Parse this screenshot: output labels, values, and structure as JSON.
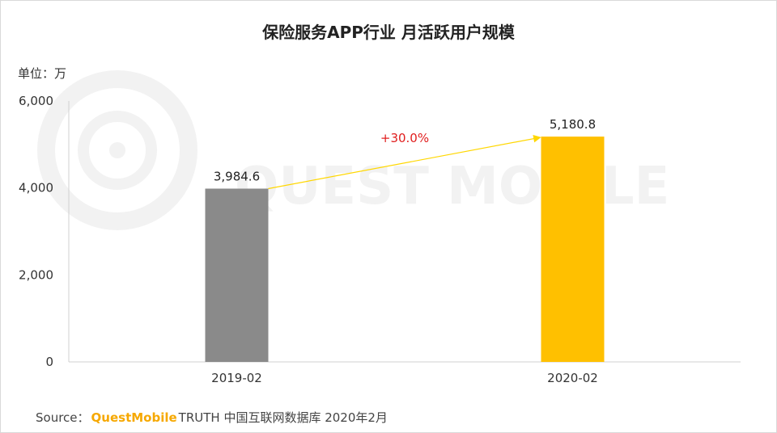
{
  "chart_data": {
    "type": "bar",
    "title": "保险服务APP行业 月活跃用户规模",
    "unit_label": "单位：万",
    "categories": [
      "2019-02",
      "2020-02"
    ],
    "values": [
      3984.6,
      5180.8
    ],
    "value_labels": [
      "3,984.6",
      "5,180.8"
    ],
    "bar_colors": [
      "#8a8a8a",
      "#ffc000"
    ],
    "ylim": [
      0,
      6000
    ],
    "yticks": [
      0,
      2000,
      4000,
      6000
    ],
    "ytick_labels": [
      "0",
      "2,000",
      "4,000",
      "6,000"
    ],
    "grid": false,
    "growth_annotation": "+30.0%",
    "growth_color": "#e01e1e",
    "arrow_color": "#ffd700"
  },
  "watermark": "QUEST MOBILE",
  "footer": {
    "source_label": "Source：",
    "brand": "QuestMobile",
    "rest": "TRUTH 中国互联网数据库 2020年2月"
  }
}
